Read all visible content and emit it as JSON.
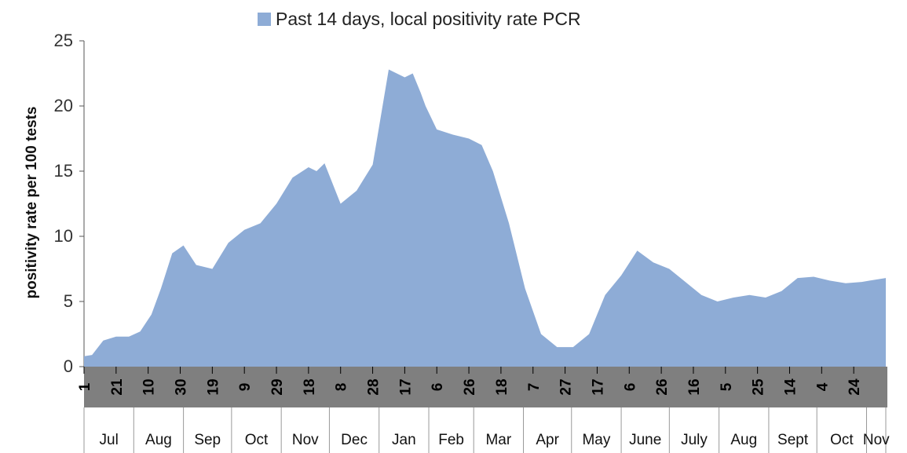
{
  "chart_data": {
    "type": "area",
    "title": "",
    "legend": {
      "position": "top-center",
      "entries": [
        "Past 14 days, local positivity rate PCR"
      ]
    },
    "ylabel": "positivity rate per 100 tests",
    "xlabel": "",
    "ylim": [
      0,
      25
    ],
    "yticks": [
      0,
      5,
      10,
      15,
      20,
      25
    ],
    "grid": false,
    "series": [
      {
        "name": "Past 14 days, local positivity rate PCR",
        "color": "#8eacd6",
        "x": [
          0,
          5,
          12,
          20,
          28,
          35,
          42,
          48,
          55,
          62,
          70,
          80,
          90,
          100,
          110,
          120,
          130,
          140,
          145,
          150,
          160,
          170,
          180,
          190,
          200,
          205,
          210,
          213,
          220,
          230,
          240,
          248,
          255,
          265,
          275,
          285,
          295,
          305,
          315,
          325,
          335,
          345,
          355,
          365,
          375,
          385,
          395,
          405,
          415,
          425,
          435,
          445,
          455,
          465,
          475,
          485,
          490,
          495,
          500
        ],
        "y": [
          0.8,
          0.9,
          2.0,
          2.3,
          2.3,
          2.7,
          4.0,
          6.0,
          8.7,
          9.3,
          7.8,
          7.5,
          9.5,
          10.5,
          11.0,
          12.5,
          14.5,
          15.3,
          15.0,
          15.6,
          12.5,
          13.5,
          15.5,
          22.8,
          22.2,
          22.5,
          21.0,
          20.0,
          18.2,
          17.8,
          17.5,
          17.0,
          15.0,
          11.0,
          6.0,
          2.5,
          1.5,
          1.5,
          2.5,
          5.5,
          7.0,
          8.9,
          8.0,
          7.5,
          6.5,
          5.5,
          5.0,
          5.3,
          5.5,
          5.3,
          5.8,
          6.8,
          6.9,
          6.6,
          6.4,
          6.5,
          6.6,
          6.7,
          6.8
        ]
      }
    ],
    "x_tick_labels": [
      "1",
      "21",
      "10",
      "30",
      "19",
      "9",
      "29",
      "18",
      "8",
      "28",
      "17",
      "6",
      "26",
      "18",
      "7",
      "27",
      "17",
      "6",
      "26",
      "16",
      "5",
      "25",
      "14",
      "4",
      "24"
    ],
    "x_tick_days": [
      0,
      20,
      40,
      60,
      80,
      100,
      120,
      140,
      160,
      180,
      200,
      220,
      240,
      260,
      280,
      300,
      320,
      340,
      360,
      380,
      400,
      420,
      440,
      460,
      480
    ],
    "months": [
      "Jul",
      "Aug",
      "Sep",
      "Oct",
      "Nov",
      "Dec",
      "Jan",
      "Feb",
      "Mar",
      "Apr",
      "May",
      "June",
      "July",
      "Aug",
      "Sept",
      "Oct",
      "Nov"
    ],
    "month_bounds": [
      0,
      31,
      62,
      92,
      123,
      153,
      184,
      215,
      243,
      274,
      304,
      335,
      365,
      396,
      427,
      457,
      488,
      500
    ]
  }
}
